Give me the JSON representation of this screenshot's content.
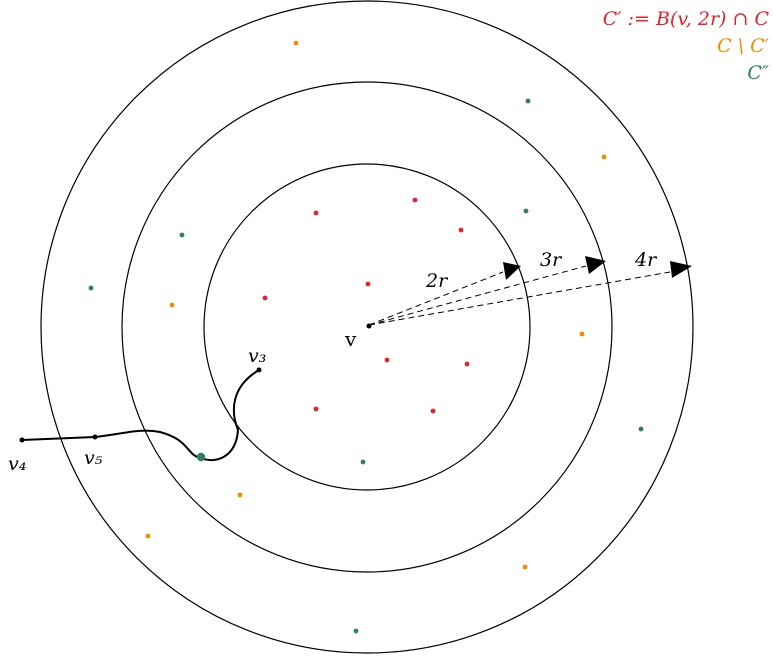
{
  "legend": [
    {
      "text": "C′ := B(v, 2r) ∩ C",
      "color": "#e8202a"
    },
    {
      "text": "C \\ C′",
      "color": "#f28c00"
    },
    {
      "text": "C″",
      "color": "#2f7f57"
    }
  ],
  "center_label": "v",
  "radius_labels": [
    "2r",
    "3r",
    "4r"
  ],
  "path_labels": {
    "v3": "v₃",
    "v4": "v₄",
    "v5": "v₅"
  },
  "colors": {
    "red": "#e8202a",
    "orange": "#f28c00",
    "green": "#2f7f57",
    "ink": "#000000"
  }
}
